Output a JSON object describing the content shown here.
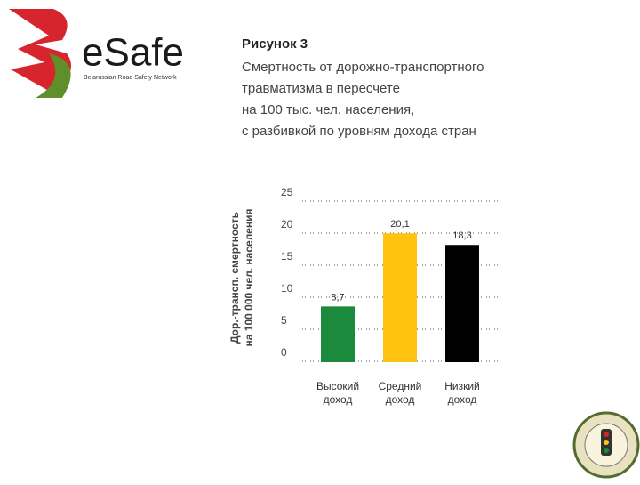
{
  "logo": {
    "name": "eSafe",
    "tagline": "Belarussian Road Safety Network"
  },
  "chart_data": {
    "type": "bar",
    "title": "Рисунок 3",
    "subtitle_lines": [
      "Смертность от дорожно-транспортного",
      "травматизма в пересчете",
      "на 100 тыс. чел. населения,",
      "с разбивкой по уровням дохода стран"
    ],
    "ylabel_lines": [
      "Дор.-трансп. смертность",
      "на 100 000 чел. населения"
    ],
    "categories": [
      "Высокий доход",
      "Средний доход",
      "Низкий доход"
    ],
    "values": [
      8.7,
      20.1,
      18.3
    ],
    "value_labels": [
      "8,7",
      "20,1",
      "18,3"
    ],
    "colors": [
      "#1b8a3c",
      "#ffc20e",
      "#000000"
    ],
    "ylim": [
      0,
      25
    ],
    "yticks": [
      0,
      5,
      10,
      15,
      20,
      25
    ],
    "grid": true
  }
}
